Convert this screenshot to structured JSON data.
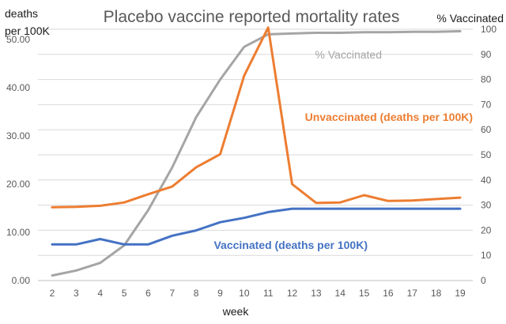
{
  "chart_data": {
    "type": "line",
    "title": "Placebo vaccine reported mortality rates",
    "xlabel": "week",
    "ylabel_left": [
      "deaths",
      "per 100K"
    ],
    "ylabel_right": "% Vaccinated",
    "x": [
      2,
      3,
      4,
      5,
      6,
      7,
      8,
      9,
      10,
      11,
      12,
      13,
      14,
      15,
      16,
      17,
      18,
      19
    ],
    "x_tick_labels": [
      "2",
      "3",
      "4",
      "5",
      "6",
      "7",
      "8",
      "9",
      "10",
      "11",
      "12",
      "13",
      "14",
      "15",
      "16",
      "17",
      "18",
      "19"
    ],
    "ylim_left": [
      0,
      50
    ],
    "y_left_tick_labels": [
      "0.00",
      "10.00",
      "20.00",
      "30.00",
      "40.00",
      "50.00"
    ],
    "ylim_right": [
      0,
      100
    ],
    "y_right_tick_labels": [
      "0",
      "10",
      "20",
      "30",
      "40",
      "50",
      "60",
      "70",
      "80",
      "90",
      "100"
    ],
    "grid": "horizontal",
    "legend": "none (series labelled directly on plot)",
    "series": [
      {
        "name": "Unvaccinated (deaths per 100K)",
        "axis": "left",
        "color": "#ED7D31",
        "values": [
          15.2,
          15.3,
          15.5,
          16.2,
          17.9,
          19.5,
          23.5,
          26.2,
          42.5,
          52.5,
          20.0,
          16.1,
          16.2,
          17.7,
          16.5,
          16.6,
          16.9,
          17.2
        ]
      },
      {
        "name": "Vaccinated (deaths per 100K)",
        "axis": "left",
        "color": "#4472C4",
        "values": [
          7.5,
          7.5,
          8.6,
          7.5,
          7.5,
          9.3,
          10.4,
          12.1,
          13.0,
          14.2,
          14.9,
          14.9,
          14.9,
          14.9,
          14.9,
          14.9,
          14.9,
          14.9
        ]
      },
      {
        "name": "% Vaccinated",
        "axis": "right",
        "color": "#A5A5A5",
        "values": [
          2,
          4,
          7,
          14,
          28,
          45,
          65,
          80,
          93,
          98,
          98.3,
          98.6,
          98.6,
          98.8,
          98.8,
          99,
          99,
          99.2
        ]
      }
    ]
  }
}
